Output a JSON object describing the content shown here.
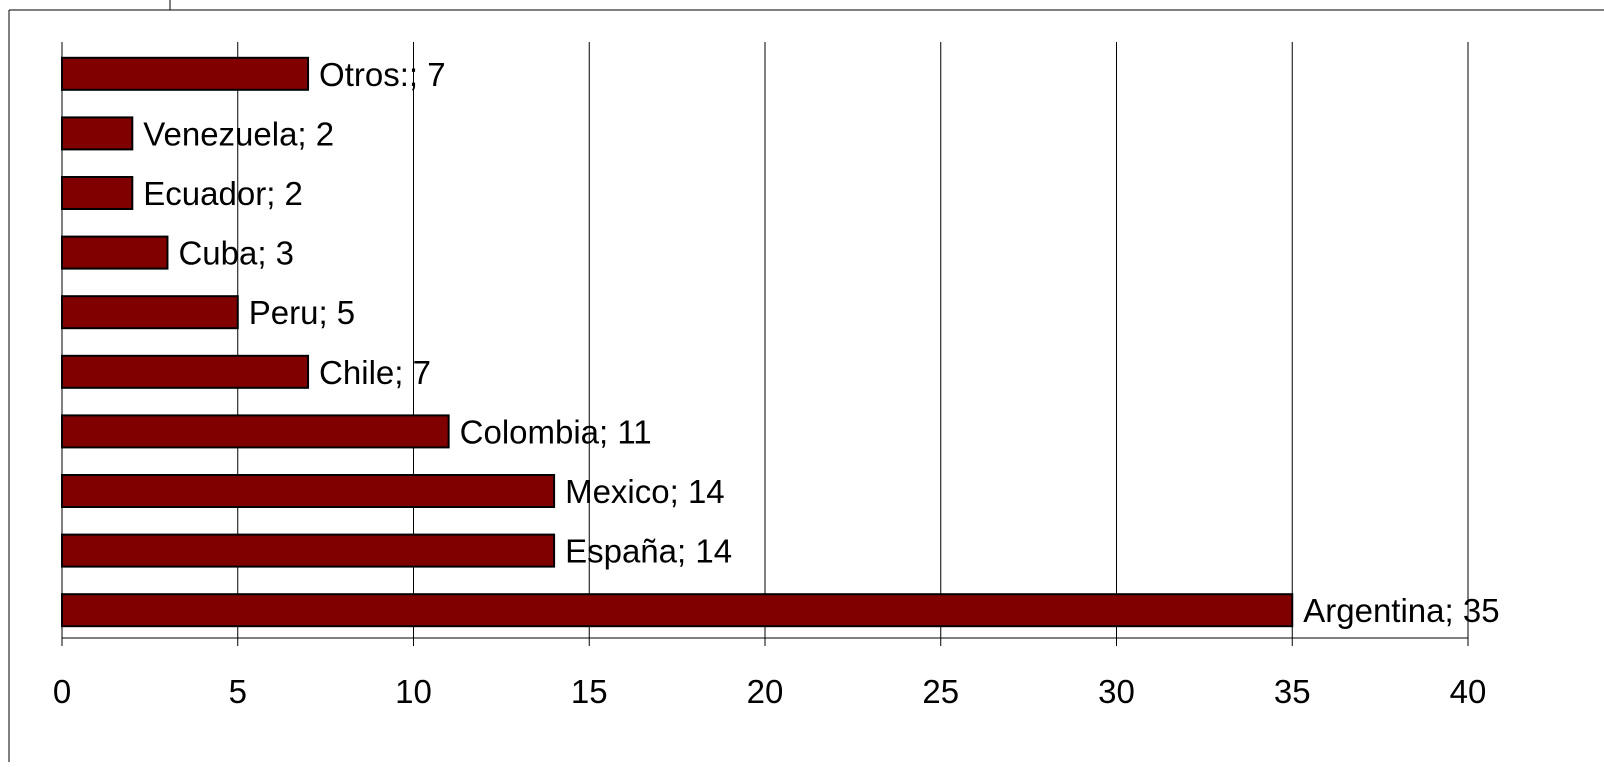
{
  "chart_data": {
    "type": "bar",
    "orientation": "horizontal",
    "categories": [
      "Argentina",
      "España",
      "Mexico",
      "Colombia",
      "Chile",
      "Peru",
      "Cuba",
      "Ecuador",
      "Venezuela",
      "Otros:"
    ],
    "values": [
      35,
      14,
      14,
      11,
      7,
      5,
      3,
      2,
      2,
      7
    ],
    "data_labels": [
      "Argentina; 35",
      "España; 14",
      "Mexico; 14",
      "Colombia; 11",
      "Chile; 7",
      "Peru; 5",
      "Cuba; 3",
      "Ecuador; 2",
      "Venezuela; 2",
      "Otros:; 7"
    ],
    "x_ticks": [
      "0",
      "5",
      "10",
      "15",
      "20",
      "25",
      "30",
      "35",
      "40"
    ],
    "xlim": [
      0,
      40
    ],
    "title": "",
    "xlabel": "",
    "ylabel": "",
    "grid": "vertical",
    "legend": "none",
    "bar_color": "#800000",
    "bar_edge_color": "#000000"
  }
}
